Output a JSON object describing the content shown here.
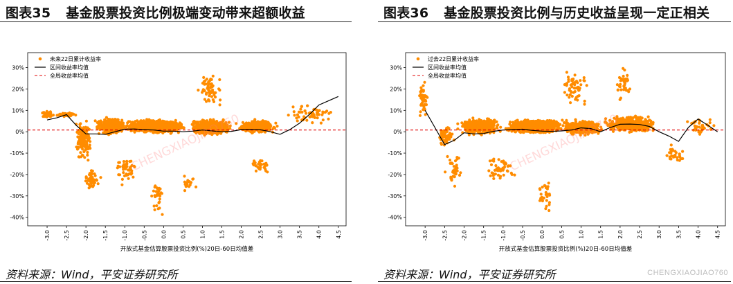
{
  "left": {
    "figure_num": "图表35",
    "title": "基金股票投资比例极端变动带来超额收益",
    "source": "资料来源：Wind，平安证券研究所"
  },
  "right": {
    "figure_num": "图表36",
    "title": "基金股票投资比例与历史收益呈现一定正相关",
    "source": "资料来源：Wind，平安证券研究所"
  },
  "watermark": "CHENGXIAOJIAO760",
  "colors": {
    "scatter": "#ff8c00",
    "line": "#000000",
    "mean": "#e00000"
  },
  "chart_data": [
    {
      "type": "scatter",
      "xlabel": "开放式基金估算股票投资比例(%)20日-60日均值差",
      "ylabel": "",
      "xlim": [
        -3.5,
        4.7
      ],
      "ylim": [
        -0.44,
        0.37
      ],
      "xticks": [
        -3.0,
        -2.5,
        -2.0,
        -1.5,
        -1.0,
        -0.5,
        0.0,
        0.5,
        1.0,
        1.5,
        2.0,
        2.5,
        3.0,
        3.5,
        4.0,
        4.5
      ],
      "xtick_labels": [
        "-3.0",
        "-2.5",
        "-2.0",
        "-1.5",
        "-1.0",
        "-0.5",
        "0.0",
        "0.5",
        "1.0",
        "1.5",
        "2.0",
        "2.5",
        "3.0",
        "3.5",
        "4.0",
        "4.5"
      ],
      "yticks": [
        -0.4,
        -0.3,
        -0.2,
        -0.1,
        0.0,
        0.1,
        0.2,
        0.3
      ],
      "ytick_labels": [
        "-40%",
        "-30%",
        "-20%",
        "-10%",
        "0%",
        "10%",
        "20%",
        "30%"
      ],
      "legend_position": "top-left",
      "series": [
        {
          "name": "未来22日累计收益率",
          "kind": "scatter",
          "clusters": [
            {
              "x": [
                -3.2,
                -2.8
              ],
              "y": [
                0.06,
                0.1
              ],
              "n": 60
            },
            {
              "x": [
                -2.8,
                -2.2
              ],
              "y": [
                0.07,
                0.09
              ],
              "n": 80
            },
            {
              "x": [
                -2.3,
                -1.8
              ],
              "y": [
                -0.15,
                0.08
              ],
              "n": 140
            },
            {
              "x": [
                -2.1,
                -1.6
              ],
              "y": [
                -0.3,
                -0.15
              ],
              "n": 50
            },
            {
              "x": [
                -1.8,
                -0.9
              ],
              "y": [
                -0.02,
                0.07
              ],
              "n": 420
            },
            {
              "x": [
                -1.3,
                -0.6
              ],
              "y": [
                -0.25,
                -0.1
              ],
              "n": 50
            },
            {
              "x": [
                -1.0,
                0.6
              ],
              "y": [
                -0.01,
                0.06
              ],
              "n": 1300
            },
            {
              "x": [
                -0.4,
                0.1
              ],
              "y": [
                -0.41,
                -0.2
              ],
              "n": 30
            },
            {
              "x": [
                0.4,
                0.9
              ],
              "y": [
                -0.3,
                -0.2
              ],
              "n": 20
            },
            {
              "x": [
                0.6,
                1.8
              ],
              "y": [
                -0.02,
                0.06
              ],
              "n": 600
            },
            {
              "x": [
                0.8,
                1.6
              ],
              "y": [
                0.1,
                0.28
              ],
              "n": 60
            },
            {
              "x": [
                1.8,
                3.0
              ],
              "y": [
                -0.01,
                0.06
              ],
              "n": 330
            },
            {
              "x": [
                2.2,
                2.8
              ],
              "y": [
                -0.2,
                -0.12
              ],
              "n": 30
            },
            {
              "x": [
                3.0,
                4.6
              ],
              "y": [
                0.02,
                0.14
              ],
              "n": 60
            }
          ]
        },
        {
          "name": "区间收益率均值",
          "kind": "line",
          "x": [
            -3.0,
            -2.75,
            -2.5,
            -2.25,
            -2.0,
            -1.75,
            -1.5,
            -1.25,
            -1.0,
            -0.75,
            -0.5,
            -0.25,
            0.0,
            0.25,
            0.5,
            0.75,
            1.0,
            1.25,
            1.5,
            1.75,
            2.0,
            2.25,
            2.5,
            2.75,
            3.0,
            3.25,
            3.5,
            3.75,
            4.0,
            4.25,
            4.5
          ],
          "y": [
            0.055,
            0.065,
            0.08,
            0.03,
            -0.01,
            -0.01,
            -0.012,
            0.0,
            0.012,
            0.013,
            0.01,
            0.008,
            0.003,
            0.003,
            0.0,
            0.003,
            0.008,
            0.004,
            0.0,
            0.002,
            0.01,
            0.011,
            0.009,
            0.0,
            -0.012,
            0.01,
            0.04,
            0.08,
            0.125,
            0.145,
            0.165
          ]
        },
        {
          "name": "全局收益率均值",
          "kind": "hline",
          "y": 0.008
        }
      ]
    },
    {
      "type": "scatter",
      "xlabel": "开放式基金估算股票投资比例(%)20日-60日均值差",
      "ylabel": "",
      "xlim": [
        -3.5,
        4.7
      ],
      "ylim": [
        -0.44,
        0.37
      ],
      "xticks": [
        -3.0,
        -2.5,
        -2.0,
        -1.5,
        -1.0,
        -0.5,
        0.0,
        0.5,
        1.0,
        1.5,
        2.0,
        2.5,
        3.0,
        3.5,
        4.0,
        4.5
      ],
      "xtick_labels": [
        "-3.0",
        "-2.5",
        "-2.0",
        "-1.5",
        "-1.0",
        "-0.5",
        "0.0",
        "0.5",
        "1.0",
        "1.5",
        "2.0",
        "2.5",
        "3.0",
        "3.5",
        "4.0",
        "4.5"
      ],
      "yticks": [
        -0.4,
        -0.3,
        -0.2,
        -0.1,
        0.0,
        0.1,
        0.2,
        0.3
      ],
      "ytick_labels": [
        "-40%",
        "-30%",
        "-20%",
        "-10%",
        "0%",
        "10%",
        "20%",
        "30%"
      ],
      "legend_position": "top-left",
      "series": [
        {
          "name": "过去22日累计收益率",
          "kind": "scatter",
          "clusters": [
            {
              "x": [
                -3.2,
                -2.9
              ],
              "y": [
                0.05,
                0.24
              ],
              "n": 50
            },
            {
              "x": [
                -2.7,
                -2.2
              ],
              "y": [
                -0.08,
                0.03
              ],
              "n": 60
            },
            {
              "x": [
                -2.5,
                -2.0
              ],
              "y": [
                -0.27,
                -0.1
              ],
              "n": 40
            },
            {
              "x": [
                -2.2,
                -1.0
              ],
              "y": [
                -0.02,
                0.07
              ],
              "n": 430
            },
            {
              "x": [
                -1.6,
                -0.5
              ],
              "y": [
                -0.25,
                -0.1
              ],
              "n": 50
            },
            {
              "x": [
                -1.0,
                0.6
              ],
              "y": [
                -0.01,
                0.06
              ],
              "n": 1300
            },
            {
              "x": [
                -0.2,
                0.4
              ],
              "y": [
                -0.4,
                -0.2
              ],
              "n": 30
            },
            {
              "x": [
                0.4,
                1.6
              ],
              "y": [
                -0.02,
                0.06
              ],
              "n": 500
            },
            {
              "x": [
                0.4,
                1.2
              ],
              "y": [
                0.1,
                0.3
              ],
              "n": 60
            },
            {
              "x": [
                1.5,
                3.0
              ],
              "y": [
                -0.01,
                0.08
              ],
              "n": 380
            },
            {
              "x": [
                1.8,
                2.4
              ],
              "y": [
                0.12,
                0.32
              ],
              "n": 40
            },
            {
              "x": [
                3.1,
                3.7
              ],
              "y": [
                -0.16,
                -0.05
              ],
              "n": 30
            },
            {
              "x": [
                3.6,
                4.6
              ],
              "y": [
                -0.03,
                0.08
              ],
              "n": 40
            }
          ]
        },
        {
          "name": "区间收益率均值",
          "kind": "line",
          "x": [
            -3.0,
            -2.75,
            -2.5,
            -2.25,
            -2.0,
            -1.75,
            -1.5,
            -1.25,
            -1.0,
            -0.75,
            -0.5,
            -0.25,
            0.0,
            0.25,
            0.5,
            0.75,
            1.0,
            1.25,
            1.5,
            1.75,
            2.0,
            2.25,
            2.5,
            2.75,
            3.0,
            3.25,
            3.5,
            3.75,
            4.0,
            4.25,
            4.5
          ],
          "y": [
            0.1,
            0.02,
            -0.06,
            -0.04,
            -0.005,
            -0.01,
            -0.008,
            0.002,
            0.008,
            0.01,
            0.012,
            0.006,
            0.003,
            0.002,
            0.004,
            0.008,
            0.018,
            0.015,
            0.0,
            0.02,
            0.035,
            0.036,
            0.034,
            0.025,
            0.0,
            -0.02,
            -0.045,
            0.02,
            0.06,
            0.03,
            0.0
          ]
        },
        {
          "name": "全局收益率均值",
          "kind": "hline",
          "y": 0.008
        }
      ]
    }
  ]
}
